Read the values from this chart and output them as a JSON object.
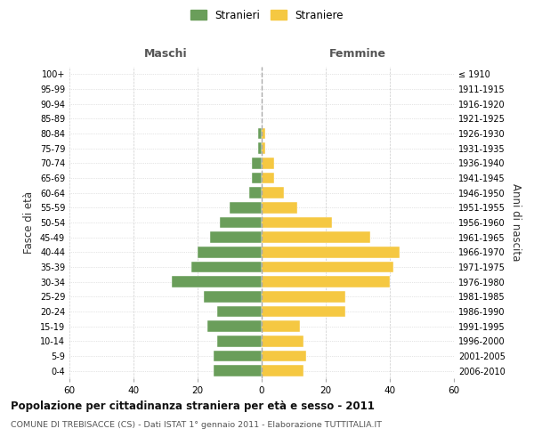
{
  "age_groups": [
    "0-4",
    "5-9",
    "10-14",
    "15-19",
    "20-24",
    "25-29",
    "30-34",
    "35-39",
    "40-44",
    "45-49",
    "50-54",
    "55-59",
    "60-64",
    "65-69",
    "70-74",
    "75-79",
    "80-84",
    "85-89",
    "90-94",
    "95-99",
    "100+"
  ],
  "birth_years": [
    "2006-2010",
    "2001-2005",
    "1996-2000",
    "1991-1995",
    "1986-1990",
    "1981-1985",
    "1976-1980",
    "1971-1975",
    "1966-1970",
    "1961-1965",
    "1956-1960",
    "1951-1955",
    "1946-1950",
    "1941-1945",
    "1936-1940",
    "1931-1935",
    "1926-1930",
    "1921-1925",
    "1916-1920",
    "1911-1915",
    "≤ 1910"
  ],
  "maschi": [
    15,
    15,
    14,
    17,
    14,
    18,
    28,
    22,
    20,
    16,
    13,
    10,
    4,
    3,
    3,
    1,
    1,
    0,
    0,
    0,
    0
  ],
  "femmine": [
    13,
    14,
    13,
    12,
    26,
    26,
    40,
    41,
    43,
    34,
    22,
    11,
    7,
    4,
    4,
    1,
    1,
    0,
    0,
    0,
    0
  ],
  "maschi_color": "#6a9e5a",
  "femmine_color": "#f5c842",
  "background_color": "#ffffff",
  "grid_color": "#cccccc",
  "xlim": 60,
  "title": "Popolazione per cittadinanza straniera per età e sesso - 2011",
  "subtitle": "COMUNE DI TREBISACCE (CS) - Dati ISTAT 1° gennaio 2011 - Elaborazione TUTTITALIA.IT",
  "ylabel_left": "Fasce di età",
  "ylabel_right": "Anni di nascita",
  "header_left": "Maschi",
  "header_right": "Femmine",
  "legend_stranieri": "Stranieri",
  "legend_straniere": "Straniere"
}
